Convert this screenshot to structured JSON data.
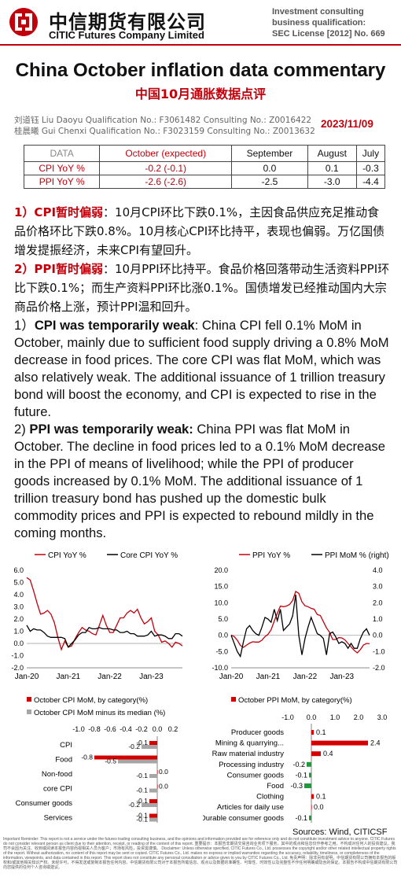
{
  "header": {
    "company_cn": "中信期货有限公司",
    "company_en": "CITIC Futures Company Limited",
    "license": [
      "Investment consulting",
      "business qualification:",
      "SEC License [2012] No. 669"
    ]
  },
  "title_en": "China October inflation data commentary",
  "title_cn": "中国10月通胀数据点评",
  "analysts": [
    {
      "cn": "刘道钰",
      "en": "Liu Daoyu",
      "qualification": "Qualification No.: F3061482",
      "consulting": "Consulting No.: Z0016422"
    },
    {
      "cn": "桂晨曦",
      "en": "Gui Chenxi",
      "qualification": "Qualification No.: F3023159",
      "consulting": "Consulting No.: Z0013632"
    }
  ],
  "date": "2023/11/09",
  "table": {
    "headers": [
      "DATA",
      "October (expected)",
      "September",
      "August",
      "July"
    ],
    "rows": [
      [
        "CPI YoY %",
        "-0.2 (-0.1)",
        "0.0",
        "0.1",
        "-0.3"
      ],
      [
        "PPI YoY %",
        "-2.6 (-2.6)",
        "-2.5",
        "-3.0",
        "-4.4"
      ]
    ]
  },
  "cn_text": {
    "p1_label": "1）CPI暂时偏弱",
    "p1_body": "：10月CPI环比下跌0.1%，主因食品供应充足推动食品价格环比下跌0.8%。10月核心CPI环比持平，表现也偏弱。万亿国债增发提振经济，未来CPI有望回升。",
    "p2_label": "2）PPI暂时偏弱",
    "p2_body": "：10月PPI环比持平。食品价格回落带动生活资料PPI环比下跌0.1%；而生产资料PPI环比涨0.1%。国债增发已经推动国内大宗商品价格上涨，预计PPI温和回升。"
  },
  "en_text": {
    "p1_num": "1）",
    "p1_bold": "CPI was temporarily weak",
    "p1_body": ": China CPI fell 0.1% MoM in October, mainly due to sufficient food supply driving a 0.8% MoM decrease in food prices. The core CPI was flat MoM, which was also relatively weak. The additional issuance of 1 trillion treasury bond will boost the economy, and CPI is expected to rise in the future.",
    "p2_num": "2) ",
    "p2_bold": "PPI was temporarily weak:",
    "p2_body": " China PPI was flat MoM in October. The decline in food prices led to a 0.1% MoM decrease in the PPI of means of livelihood; while the PPI of producer goods increased by 0.1% MoM. The additional issuance of 1 trillion treasury bond has pushed up the domestic bulk commodity prices and PPI is expected to rebound mildly in the coming months."
  },
  "colors": {
    "brand_red": "#c2000b",
    "bar_red": "#d40000",
    "bar_gray": "#a6a6a6",
    "bar_green": "#1f9a3c"
  },
  "chart_data": [
    {
      "type": "line",
      "legend": [
        "CPI YoY %",
        "Core CPI YoY %"
      ],
      "ylim": [
        -2,
        6
      ],
      "yticks": [
        "6.0",
        "5.0",
        "4.0",
        "3.0",
        "2.0",
        "1.0",
        "0.0",
        "-1.0",
        "-2.0"
      ],
      "xticks": [
        "Jan-20",
        "Jan-21",
        "Jan-22",
        "Jan-23"
      ],
      "series": [
        {
          "name": "CPI YoY %",
          "color": "#c2000b",
          "values": [
            5.4,
            5.2,
            4.3,
            3.3,
            2.4,
            2.5,
            2.7,
            2.4,
            1.7,
            0.5,
            -0.5,
            0.2,
            -0.3,
            -0.2,
            0.4,
            0.9,
            1.3,
            1.1,
            1.0,
            0.8,
            0.7,
            1.5,
            2.3,
            1.5,
            0.9,
            0.9,
            1.5,
            2.1,
            2.1,
            2.5,
            2.7,
            2.5,
            2.8,
            2.1,
            1.6,
            1.8,
            2.1,
            1.0,
            0.7,
            0.1,
            0.2,
            0.0,
            -0.3,
            0.1,
            0.0,
            -0.2
          ]
        },
        {
          "name": "Core CPI YoY %",
          "color": "#000000",
          "values": [
            1.5,
            1.0,
            1.2,
            1.1,
            1.1,
            0.9,
            0.6,
            0.5,
            0.5,
            0.5,
            0.5,
            0.4,
            -0.3,
            0.0,
            0.3,
            0.7,
            0.9,
            0.9,
            1.3,
            1.2,
            1.2,
            1.3,
            1.2,
            1.2,
            1.2,
            1.1,
            1.1,
            0.9,
            0.9,
            1.0,
            0.8,
            0.8,
            0.6,
            0.6,
            0.6,
            0.7,
            1.0,
            0.6,
            0.7,
            0.7,
            0.6,
            0.4,
            0.4,
            0.8,
            0.8,
            0.6
          ]
        }
      ]
    },
    {
      "type": "line",
      "legend": [
        "PPI YoY %",
        "PPI MoM % (right)"
      ],
      "ylim": [
        -10,
        20
      ],
      "y2lim": [
        -2,
        4
      ],
      "yticks": [
        "20.0",
        "15.0",
        "10.0",
        "5.0",
        "0.0",
        "-5.0",
        "-10.0"
      ],
      "y2ticks": [
        "4.0",
        "3.0",
        "2.0",
        "1.0",
        "0.0",
        "-1.0",
        "-2.0"
      ],
      "xticks": [
        "Jan-20",
        "Jan-21",
        "Jan-22",
        "Jan-23"
      ],
      "series": [
        {
          "name": "PPI YoY %",
          "color": "#c2000b",
          "values": [
            0.1,
            -0.4,
            -1.5,
            -3.1,
            -3.7,
            -3.0,
            -2.4,
            -2.0,
            -2.1,
            -2.1,
            -1.5,
            -0.4,
            0.3,
            1.7,
            4.4,
            6.8,
            9.0,
            8.8,
            9.0,
            9.5,
            10.7,
            13.5,
            12.9,
            10.3,
            9.1,
            8.8,
            8.3,
            8.0,
            6.4,
            6.1,
            4.2,
            2.3,
            0.9,
            -1.3,
            -1.3,
            -0.7,
            -0.8,
            -1.4,
            -2.5,
            -3.6,
            -4.6,
            -5.4,
            -4.4,
            -3.0,
            -2.5,
            -2.6
          ],
          "axis": "left"
        },
        {
          "name": "PPI MoM % (right)",
          "color": "#000000",
          "values": [
            0.0,
            -0.5,
            -1.0,
            -1.3,
            -0.4,
            0.4,
            0.6,
            0.3,
            0.1,
            0.0,
            0.5,
            1.1,
            1.0,
            0.8,
            1.6,
            0.9,
            1.6,
            0.3,
            0.5,
            0.7,
            1.2,
            2.5,
            0.0,
            -1.2,
            -0.2,
            0.5,
            1.1,
            0.6,
            0.1,
            0.0,
            -0.2,
            -1.2,
            0.1,
            0.2,
            -0.1,
            -0.5,
            -0.4,
            -0.5,
            -0.8,
            -0.5,
            -0.8,
            -0.8,
            -0.2,
            0.2,
            0.4,
            0.0
          ],
          "axis": "right"
        }
      ]
    },
    {
      "type": "bar",
      "legend": [
        "October CPI MoM, by category(%)",
        "October CPI MoM minus its median (%)"
      ],
      "xlim": [
        -1.0,
        0.2
      ],
      "xticks": [
        "-1.0",
        "-0.8",
        "-0.6",
        "-0.4",
        "-0.2",
        "0.0",
        "0.2"
      ],
      "categories": [
        "CPI",
        "Food",
        "Non-food",
        "core CPI",
        "Consumer goods",
        "Services"
      ],
      "series": [
        {
          "name": "October CPI MoM, by category(%)",
          "color": "#d40000",
          "values": [
            -0.1,
            -0.8,
            0.0,
            0.0,
            -0.1,
            -0.1
          ]
        },
        {
          "name": "October CPI MoM minus its median (%)",
          "color": "#a6a6a6",
          "values": [
            -0.2,
            -0.5,
            -0.1,
            -0.1,
            -0.2,
            -0.1
          ]
        }
      ],
      "label_text": [
        [
          "-0.1",
          "-0.2"
        ],
        [
          "-0.8",
          "-0.5"
        ],
        [
          "0.0",
          "-0.1"
        ],
        [
          "0.0",
          "-0.1"
        ],
        [
          "-0.1",
          "-0.2"
        ],
        [
          "-0.1",
          "-0.1"
        ]
      ]
    },
    {
      "type": "bar",
      "legend": [
        "October PPI MoM, by category(%)"
      ],
      "xlim": [
        -1.0,
        3.0
      ],
      "xticks": [
        "-1.0",
        "0.0",
        "1.0",
        "2.0",
        "3.0"
      ],
      "categories": [
        "Producer goods",
        "Mining & quarrying...",
        "Raw material industry",
        "Processing industry",
        "Consumer goods",
        "Food",
        "Clothing",
        "Articles for daily use",
        "Durable consumer goods"
      ],
      "values": [
        0.1,
        2.4,
        0.4,
        -0.2,
        -0.1,
        -0.3,
        0.1,
        0.0,
        -0.1
      ],
      "colors": [
        "#d40000",
        "#d40000",
        "#d40000",
        "#1f9a3c",
        "#1f9a3c",
        "#1f9a3c",
        "#d40000",
        "#d40000",
        "#1f9a3c"
      ],
      "label_text": [
        "0.1",
        "2.4",
        "0.4",
        "-0.2",
        "-0.1",
        "-0.3",
        "0.1",
        "0.0",
        "-0.1"
      ]
    }
  ],
  "source": "Sources: Wind, CITICSF",
  "disclaimer": "Important Reminder: This report is not a service under the futures trading consulting business, and the opinions and information provided are for reference only and do not constitute investment advice to anyone. CITIC Futures do not consider relevant person as client due to their attention, receipt, or reading of the content of this report. 重要提示：本报告非期货交易咨询业务项下服务，其中的观点和信息仅作参考之用，不构成对任何人的投资建议。我司不会因为关注、收到或阅读本报告内容而视相关人员为客户；市场有风险，投资需谨慎。 Disclaimer: Unless otherwise specified, CITIC Futures Co., Ltd. possesses the copyright and/or other related intellectual property rights of the report. Without authorization, no content of this report may be sent or copied. CITIC Futures Co., Ltd. makes no express or implied warranties regarding the accuracy, reliability, timeliness, or completeness of the information, viewpoints, and data contained in this report. This report does not constitute any personal consultation or advice given to you by CITIC Futures Co., Ltd. 免责声明：除非另有说明，中信期货有限公司拥有本报告的版权和/或其他相关知识产权。未经许可，不得发送或复制本报告任何内容。中信期货有限公司对于本报告所载信息、观点以及数据的准确性、可靠性、时效性以及完整性不作任何明确或隐含的保证。本报告不构成中信期货有限公司向您提供的任何个人咨询或建议。"
}
